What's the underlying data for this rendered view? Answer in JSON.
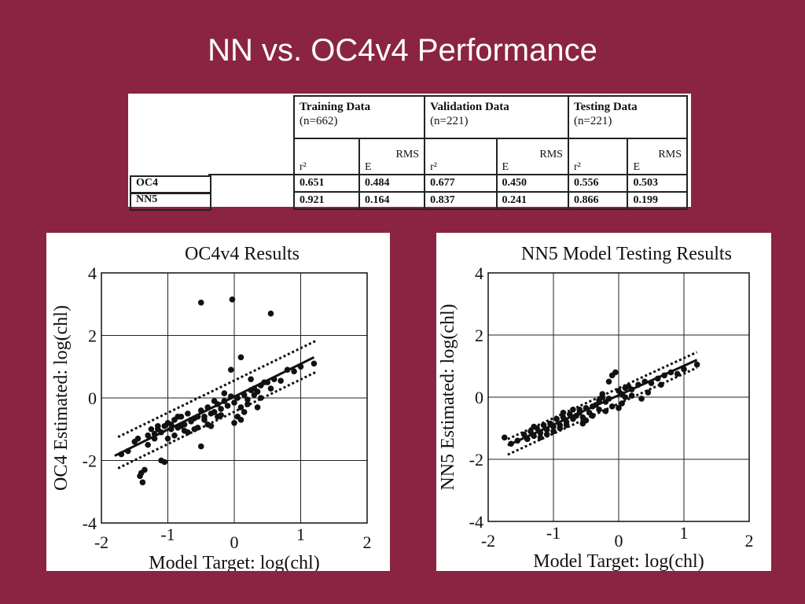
{
  "slide": {
    "title": "NN vs. OC4v4 Performance"
  },
  "table": {
    "groups": [
      {
        "name": "Training Data",
        "n": "(n=662)"
      },
      {
        "name": "Validation Data",
        "n": "(n=221)"
      },
      {
        "name": "Testing Data",
        "n": "(n=221)"
      }
    ],
    "subheaders": {
      "r2": "r²",
      "rms_top": "RMS",
      "rms_bot": "E"
    },
    "rows": [
      {
        "label": "OC4",
        "values": [
          "0.651",
          "0.484",
          "0.677",
          "0.450",
          "0.556",
          "0.503"
        ]
      },
      {
        "label": "NN5",
        "values": [
          "0.921",
          "0.164",
          "0.837",
          "0.241",
          "0.866",
          "0.199"
        ]
      }
    ]
  },
  "chart_data": [
    {
      "type": "scatter",
      "title": "OC4v4 Results",
      "xlabel": "Model Target: log(chl)",
      "ylabel": "OC4 Estimated: log(chl)",
      "xlim": [
        -2,
        2
      ],
      "ylim": [
        -4,
        4
      ],
      "x_ticks": [
        "-2",
        "-1",
        "0",
        "1",
        "2"
      ],
      "y_ticks": [
        "4",
        "2",
        "0",
        "-2",
        "-4"
      ],
      "grid": true,
      "fit_line": {
        "x": [
          -1.8,
          1.2
        ],
        "y": [
          -1.85,
          1.3
        ]
      },
      "band_upper": {
        "x": [
          -1.75,
          1.25
        ],
        "y": [
          -1.25,
          1.85
        ]
      },
      "band_lower": {
        "x": [
          -1.75,
          1.25
        ],
        "y": [
          -2.25,
          0.85
        ]
      },
      "x": [
        -0.5,
        -0.03,
        0.55,
        -1.42,
        -1.38,
        -1.35,
        -1.4,
        -1.1,
        -1.05,
        -0.5,
        -1.7,
        -1.6,
        -1.5,
        -1.3,
        -1.25,
        -1.2,
        -1.15,
        -1.1,
        -1.0,
        -0.95,
        -0.9,
        -0.85,
        -0.8,
        -0.75,
        -0.7,
        -0.65,
        -0.6,
        -0.55,
        -0.5,
        -0.45,
        -0.4,
        -0.35,
        -0.3,
        -0.25,
        -0.2,
        -0.15,
        -0.1,
        -0.05,
        0.0,
        0.05,
        0.1,
        0.15,
        0.2,
        0.25,
        0.3,
        0.35,
        0.4,
        0.5,
        0.6,
        0.8,
        1.0,
        1.2,
        -0.05,
        0.1,
        -0.6,
        -1.0,
        -1.2,
        -0.8,
        -0.4,
        -0.2,
        0.05,
        0.2,
        0.3,
        -0.3,
        -0.7,
        -0.9,
        -1.3,
        -1.15,
        -0.65,
        -0.35,
        0.0,
        0.15,
        0.45,
        0.7,
        0.9,
        -0.85,
        -0.55,
        -0.25,
        -1.05,
        -0.75,
        -0.45,
        0.25,
        0.35,
        -0.15,
        -1.45,
        -0.95,
        0.1,
        0.4,
        0.55
      ],
      "y": [
        3.05,
        3.15,
        2.7,
        -2.5,
        -2.7,
        -2.3,
        -2.4,
        -2.0,
        -2.05,
        -1.55,
        -1.8,
        -1.7,
        -1.4,
        -1.2,
        -1.0,
        -1.15,
        -0.9,
        -1.1,
        -0.8,
        -1.0,
        -0.7,
        -0.95,
        -0.6,
        -0.85,
        -0.5,
        -0.75,
        -0.65,
        -0.6,
        -0.4,
        -0.7,
        -0.3,
        -0.5,
        -0.45,
        -0.2,
        -0.35,
        -0.1,
        -0.25,
        0.05,
        -0.15,
        0.0,
        -0.3,
        0.1,
        -0.05,
        0.25,
        0.3,
        0.2,
        0.4,
        0.5,
        0.6,
        0.9,
        1.0,
        1.1,
        0.9,
        1.3,
        -1.0,
        -1.3,
        -1.3,
        -0.9,
        -0.85,
        -0.55,
        -0.6,
        -0.2,
        0.1,
        -0.1,
        -1.1,
        -1.2,
        -1.5,
        -1.0,
        -0.7,
        -0.9,
        -0.8,
        -0.45,
        0.5,
        0.55,
        0.85,
        -0.6,
        -0.95,
        -0.6,
        -0.9,
        -1.05,
        -0.6,
        0.6,
        -0.3,
        0.15,
        -1.3,
        -0.85,
        -0.7,
        0.0,
        0.3
      ]
    },
    {
      "type": "scatter",
      "title": "NN5 Model Testing Results",
      "xlabel": "Model Target: log(chl)",
      "ylabel": "NN5 Estimated: log(chl)",
      "xlim": [
        -2,
        2
      ],
      "ylim": [
        -4,
        4
      ],
      "x_ticks": [
        "-2",
        "-1",
        "0",
        "1",
        "2"
      ],
      "y_ticks": [
        "4",
        "2",
        "0",
        "-2",
        "-4"
      ],
      "grid": true,
      "fit_line": {
        "x": [
          -1.7,
          1.2
        ],
        "y": [
          -1.55,
          1.2
        ]
      },
      "band_upper": {
        "x": [
          -1.7,
          1.2
        ],
        "y": [
          -1.35,
          1.45
        ]
      },
      "band_lower": {
        "x": [
          -1.7,
          1.2
        ],
        "y": [
          -1.85,
          0.95
        ]
      },
      "x": [
        -1.75,
        -1.65,
        -1.55,
        -1.45,
        -1.4,
        -1.35,
        -1.3,
        -1.25,
        -1.2,
        -1.15,
        -1.1,
        -1.05,
        -1.0,
        -0.95,
        -0.9,
        -0.85,
        -0.8,
        -0.75,
        -0.7,
        -0.65,
        -0.6,
        -0.55,
        -0.5,
        -0.45,
        -0.4,
        -0.35,
        -0.3,
        -0.25,
        -0.2,
        -0.15,
        -0.1,
        -0.05,
        0.0,
        0.05,
        0.1,
        0.15,
        0.2,
        0.3,
        0.4,
        0.5,
        0.6,
        0.7,
        0.8,
        0.9,
        1.0,
        1.2,
        -0.15,
        -0.1,
        0.05,
        -0.5,
        -0.8,
        -1.0,
        -1.2,
        -0.6,
        -0.3,
        0.0,
        0.2,
        0.45,
        -0.7,
        -0.9,
        -1.1,
        -0.4,
        -0.2,
        0.1,
        -0.55,
        -0.85,
        -0.25,
        0.35,
        -1.3,
        0.65
      ],
      "y": [
        -1.3,
        -1.5,
        -1.4,
        -1.2,
        -1.35,
        -1.1,
        -1.25,
        -1.0,
        -1.15,
        -0.9,
        -1.05,
        -0.85,
        -0.95,
        -0.7,
        -0.9,
        -0.65,
        -0.8,
        -0.55,
        -0.7,
        -0.6,
        -0.5,
        -0.65,
        -0.35,
        -0.5,
        -0.3,
        -0.25,
        -0.4,
        0.0,
        -0.15,
        -0.05,
        0.7,
        0.8,
        0.2,
        0.1,
        0.0,
        0.35,
        0.25,
        0.4,
        0.5,
        0.45,
        0.6,
        0.7,
        0.8,
        0.75,
        0.9,
        1.05,
        0.5,
        -0.3,
        -0.2,
        -0.75,
        -0.9,
        -1.1,
        -1.3,
        -0.4,
        -0.1,
        -0.35,
        0.05,
        0.15,
        -0.4,
        -1.0,
        -1.2,
        -0.6,
        -0.45,
        0.3,
        -0.85,
        -0.5,
        0.1,
        -0.05,
        -0.95,
        0.4
      ]
    }
  ]
}
